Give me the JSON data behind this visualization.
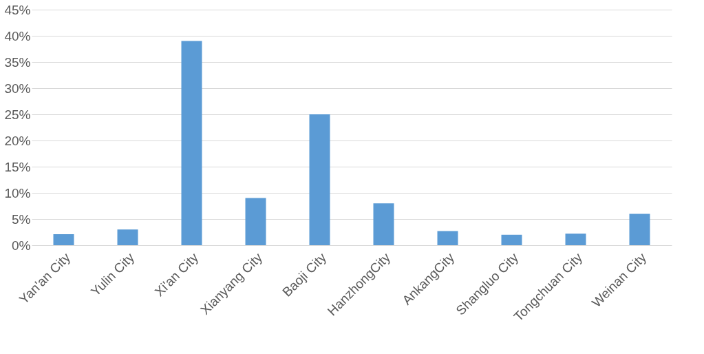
{
  "chart_data": {
    "type": "bar",
    "categories": [
      "Yan'an City",
      "Yulin City",
      "Xi'an  City",
      "Xianyang City",
      "Baoji City",
      "HanzhongCity",
      "AnkangCity",
      "Shangluo City",
      "Tongchuan City",
      "Weinan City"
    ],
    "values": [
      2.1,
      3.0,
      39,
      9,
      25,
      8,
      2.7,
      2.0,
      2.2,
      6
    ],
    "color": "#5b9bd5",
    "ylim": [
      0,
      45
    ],
    "yticks": [
      {
        "value": 0,
        "label": "0%"
      },
      {
        "value": 5,
        "label": "5%"
      },
      {
        "value": 10,
        "label": "10%"
      },
      {
        "value": 15,
        "label": "15%"
      },
      {
        "value": 20,
        "label": "20%"
      },
      {
        "value": 25,
        "label": "25%"
      },
      {
        "value": 30,
        "label": "30%"
      },
      {
        "value": 35,
        "label": "35%"
      },
      {
        "value": 40,
        "label": "40%"
      },
      {
        "value": 45,
        "label": "45%"
      }
    ],
    "grid": "y"
  }
}
